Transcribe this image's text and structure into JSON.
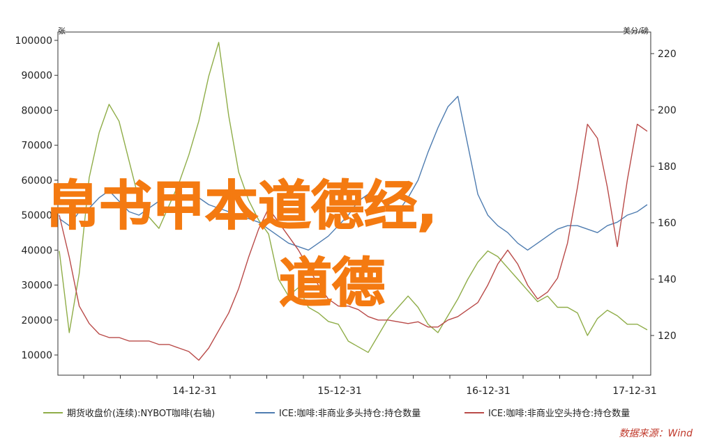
{
  "overlay": {
    "line1": "帛书甲本道德经,",
    "line2": "道德"
  },
  "source_label": "数据来源：Wind",
  "chart_data": {
    "type": "line",
    "x_tick_labels": [
      "14-12-31",
      "15-12-31",
      "16-12-31",
      "17-12-31"
    ],
    "left_axis": {
      "title": "张",
      "ticks": [
        "100000",
        "90000",
        "80000",
        "70000",
        "60000",
        "50000",
        "40000",
        "30000",
        "20000",
        "10000"
      ],
      "ylim": [
        10000,
        100000
      ]
    },
    "right_axis": {
      "title": "美分/磅",
      "ticks": [
        "220",
        "200",
        "180",
        "160",
        "140",
        "120"
      ],
      "ylim": [
        120,
        220
      ]
    },
    "colors": {
      "price": "#8fad48",
      "net_long": "#4e7cb0",
      "net_short": "#b94a48"
    },
    "series": [
      {
        "name": "期货收盘价(连续):NYBOT咖啡(右轴)",
        "axis": "right",
        "color_key": "price",
        "values": [
          150,
          121,
          142,
          176,
          192,
          202,
          196,
          182,
          168,
          162,
          158,
          166,
          174,
          184,
          196,
          212,
          224,
          198,
          178,
          168,
          161,
          156,
          140,
          134,
          137,
          130,
          128,
          125,
          124,
          118,
          116,
          114,
          120,
          126,
          130,
          134,
          130,
          124,
          121,
          127,
          133,
          140,
          146,
          150,
          148,
          144,
          140,
          136,
          132,
          134,
          130,
          130,
          128,
          120,
          126,
          129,
          127,
          124,
          124,
          122
        ]
      },
      {
        "name": "ICE:咖啡:非商业多头持仓:持仓数量",
        "axis": "left",
        "color_key": "net_long",
        "values": [
          49000,
          47000,
          51000,
          52000,
          55000,
          57000,
          54000,
          51000,
          50000,
          52000,
          54000,
          55000,
          56000,
          55000,
          55000,
          53000,
          52000,
          51000,
          50000,
          49000,
          48000,
          46000,
          44000,
          42000,
          41000,
          40000,
          42000,
          44000,
          47000,
          50000,
          54000,
          56000,
          55000,
          53000,
          51000,
          55000,
          60000,
          68000,
          75000,
          81000,
          84000,
          70000,
          56000,
          50000,
          47000,
          45000,
          42000,
          40000,
          42000,
          44000,
          46000,
          47000,
          47000,
          46000,
          45000,
          47000,
          48000,
          50000,
          51000,
          53000
        ]
      },
      {
        "name": "ICE:咖啡:非商业空头持仓:持仓数量",
        "axis": "left",
        "color_key": "net_short",
        "values": [
          50000,
          38000,
          24000,
          19000,
          16000,
          15000,
          15000,
          14000,
          14000,
          14000,
          13000,
          13000,
          12000,
          11000,
          8500,
          12000,
          17000,
          22000,
          29000,
          38000,
          46000,
          52000,
          48000,
          44000,
          40000,
          35000,
          30000,
          26000,
          24000,
          24000,
          23000,
          21000,
          20000,
          20000,
          19500,
          19000,
          19500,
          18000,
          18000,
          20000,
          21000,
          23000,
          25000,
          30000,
          36000,
          40000,
          36000,
          30000,
          26000,
          28000,
          32000,
          42000,
          58000,
          76000,
          72000,
          58000,
          41000,
          60000,
          76000,
          74000
        ]
      }
    ]
  }
}
